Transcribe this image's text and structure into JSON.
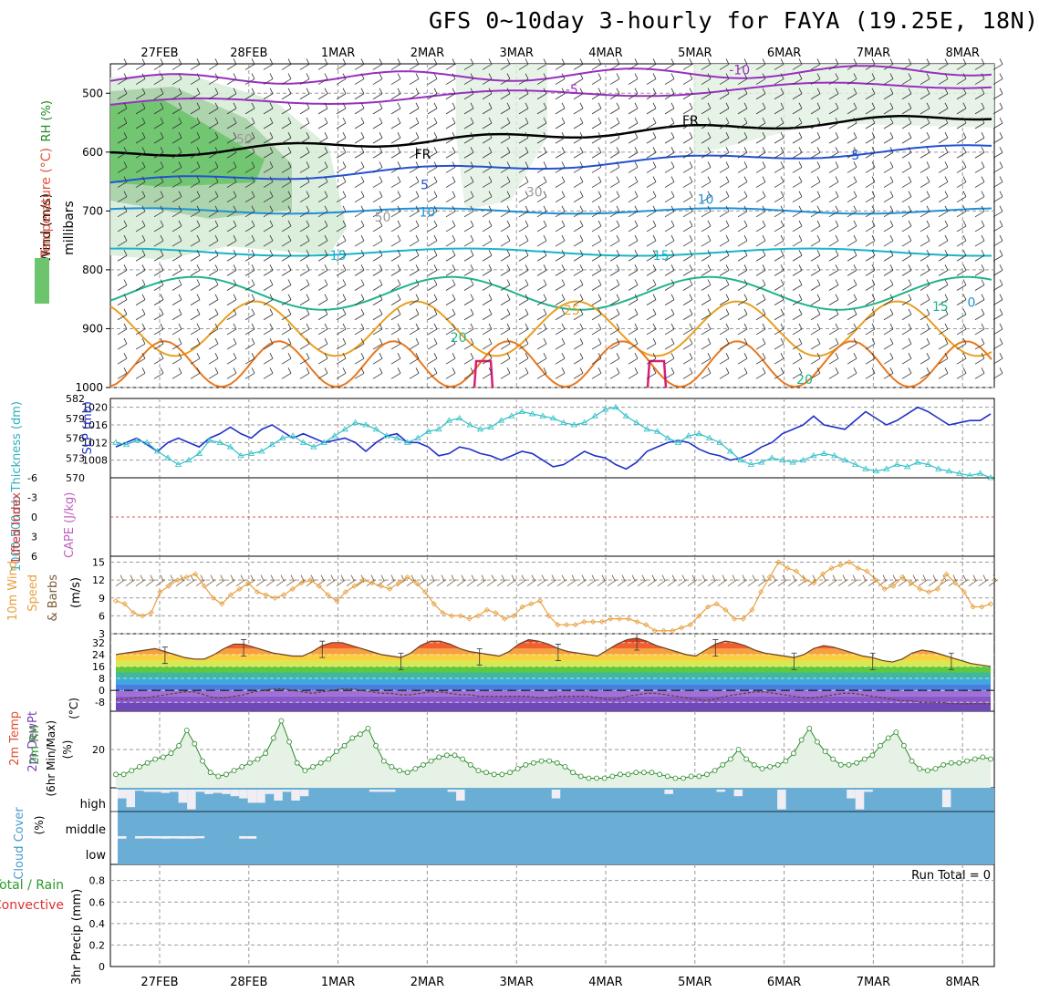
{
  "page": {
    "title": "GFS 0~10day 3-hourly for FAYA (19.25E, 18N)"
  },
  "colors": {
    "purple": "#9a2fc0",
    "black": "#000000",
    "blue": "#2351d6",
    "lightblue": "#1e90d8",
    "cyan": "#17b4c8",
    "teal": "#1eb48c",
    "orange": "#e8a020",
    "darkorange": "#e87820",
    "magenta": "#d81e78",
    "rhgreen": "#4cc84c",
    "slp": "#2030c8",
    "thick": "#30c0c8",
    "wind10m": "#e8a040",
    "rh2m": "#2a8a2a",
    "cloud": "#6aaed6",
    "grid": "#999999"
  },
  "chart_data": [
    {
      "panel": "upper-air",
      "type": "contour",
      "ylabel_parts": [
        "RH (%)",
        "Temperature (°C)",
        "Wind (m/s)"
      ],
      "ylabel2": "millibars",
      "yticks": [
        500,
        600,
        700,
        800,
        900,
        1000
      ],
      "ylim": [
        1000,
        450
      ],
      "xticks": [
        "27FEB",
        "28FEB",
        "1MAR",
        "2MAR",
        "3MAR",
        "4MAR",
        "5MAR",
        "6MAR",
        "7MAR",
        "8MAR"
      ],
      "contour_labels": [
        {
          "text": "-10",
          "day": 6.5,
          "p": 460,
          "color": "purple"
        },
        {
          "text": "-5",
          "day": 4.62,
          "p": 493,
          "color": "purple"
        },
        {
          "text": "FR",
          "day": 5.95,
          "p": 546,
          "color": "black"
        },
        {
          "text": "FR",
          "day": 2.95,
          "p": 603,
          "color": "black"
        },
        {
          "text": "5",
          "day": 7.8,
          "p": 605,
          "color": "blue"
        },
        {
          "text": "5",
          "day": 2.97,
          "p": 655,
          "color": "blue"
        },
        {
          "text": "10",
          "day": 6.12,
          "p": 680,
          "color": "lightblue"
        },
        {
          "text": "10",
          "day": 3.0,
          "p": 702,
          "color": "lightblue"
        },
        {
          "text": "15",
          "day": 2.0,
          "p": 775,
          "color": "cyan"
        },
        {
          "text": "15",
          "day": 5.62,
          "p": 775,
          "color": "cyan"
        },
        {
          "text": "15",
          "day": 8.75,
          "p": 862,
          "color": "teal"
        },
        {
          "text": "20",
          "day": 3.35,
          "p": 915,
          "color": "teal"
        },
        {
          "text": "25",
          "day": 4.62,
          "p": 868,
          "color": "orange"
        },
        {
          "text": "20",
          "day": 7.23,
          "p": 986,
          "color": "teal"
        },
        {
          "text": "0",
          "day": 9.1,
          "p": 855,
          "color": "lightblue"
        },
        {
          "text": "50",
          "day": 0.95,
          "p": 578,
          "color": "grid"
        },
        {
          "text": "50",
          "day": 2.5,
          "p": 710,
          "color": "grid"
        },
        {
          "text": "30",
          "day": 4.2,
          "p": 668,
          "color": "grid"
        }
      ]
    },
    {
      "panel": "thickness-slp",
      "type": "line",
      "ylabel_left": "1000-500mb Thickness (dm)",
      "ylabel_right": "SLP (mb)",
      "yticks_left": [
        570,
        573,
        576,
        579,
        582
      ],
      "yticks_right": [
        1008,
        1012,
        1016,
        1020
      ],
      "ylim_slp": [
        1004,
        1022
      ],
      "series": [
        {
          "name": "SLP (mb)",
          "color": "slp",
          "values": [
            1011,
            1012,
            1013,
            1011.5,
            1010,
            1012,
            1013,
            1012,
            1011,
            1013,
            1014,
            1015.5,
            1014,
            1013,
            1015,
            1016,
            1014.5,
            1013,
            1014,
            1013,
            1012,
            1012.5,
            1013,
            1012,
            1010,
            1012,
            1013.5,
            1014,
            1012,
            1012,
            1011,
            1009,
            1009.5,
            1011,
            1010.5,
            1009.5,
            1009,
            1008,
            1009,
            1010,
            1009.5,
            1008,
            1006.5,
            1007,
            1008.5,
            1010,
            1009,
            1008.5,
            1007,
            1006,
            1007.5,
            1010,
            1011,
            1012,
            1012.5,
            1012,
            1010.5,
            1009.5,
            1009,
            1008,
            1008.5,
            1009.5,
            1011,
            1012,
            1014,
            1015,
            1016,
            1018,
            1016,
            1015.5,
            1015,
            1017,
            1019,
            1017.5,
            1016,
            1017,
            1018.5,
            1020,
            1019,
            1017.5,
            1016,
            1016.5,
            1017,
            1017,
            1018.5
          ]
        },
        {
          "name": "1000-500mb Thickness (dm)",
          "color": "thick",
          "markers": "triangle",
          "values": [
            1012,
            1011.5,
            1012.5,
            1012,
            1010,
            1008.5,
            1007,
            1008,
            1009.5,
            1012.5,
            1012,
            1011,
            1009,
            1009.5,
            1010,
            1011.5,
            1013,
            1013.5,
            1012,
            1011,
            1012,
            1013.5,
            1015,
            1016.5,
            1016,
            1015,
            1013.5,
            1013,
            1012,
            1013,
            1014.5,
            1015,
            1017,
            1017.5,
            1016,
            1015,
            1015.5,
            1017,
            1018,
            1019,
            1018.5,
            1018,
            1017.5,
            1016.5,
            1016,
            1016.5,
            1018,
            1019.5,
            1020,
            1018,
            1016.5,
            1015,
            1014.5,
            1013,
            1012,
            1013.5,
            1014,
            1013,
            1012,
            1010,
            1008,
            1007,
            1007.5,
            1008.5,
            1008,
            1007.5,
            1008,
            1009,
            1009.5,
            1009,
            1008,
            1007,
            1006,
            1005.5,
            1006,
            1007,
            1006.5,
            1007.5,
            1007,
            1006,
            1005.5,
            1005,
            1004.5,
            1005,
            1004
          ]
        }
      ]
    },
    {
      "panel": "stability",
      "type": "line",
      "ylabel_left": "Lifted Index",
      "ylabel_right": "CAPE (J/kg)",
      "yticks": [
        -6,
        -3,
        0,
        3,
        6
      ],
      "ylim": [
        6,
        -6
      ],
      "reference_line": 0
    },
    {
      "panel": "wind-10m",
      "type": "line",
      "ylabel_parts": [
        "10m Wind",
        "Speed",
        "(m/s)",
        "& Barbs"
      ],
      "yticks": [
        3,
        6,
        9,
        12,
        15
      ],
      "ylim": [
        3,
        16
      ],
      "series": [
        {
          "name": "10m Wind Speed",
          "color": "wind10m",
          "markers": "diamond",
          "values": [
            8.5,
            8,
            6.5,
            6,
            6.5,
            10,
            11,
            12,
            12.5,
            13,
            11,
            9,
            8,
            9.5,
            10.5,
            11.5,
            10,
            9.5,
            9,
            9.5,
            10.5,
            11.5,
            12,
            11,
            9.5,
            8.5,
            10,
            11,
            12,
            11.5,
            11,
            10.5,
            11.5,
            12.5,
            11.5,
            10,
            8,
            6.5,
            6,
            6,
            5.5,
            6,
            7,
            6.5,
            5.5,
            6,
            7.5,
            8,
            8.5,
            6,
            4.5,
            4.5,
            4.5,
            5,
            5,
            5,
            5.5,
            5.5,
            5.5,
            5,
            4.5,
            3.5,
            3.5,
            3.5,
            4,
            4.5,
            6,
            7.5,
            8,
            7,
            5.5,
            5.5,
            7,
            10,
            12.5,
            15,
            14,
            13.5,
            12,
            11.5,
            13,
            14,
            14.5,
            15,
            14,
            13.5,
            12,
            10.5,
            11,
            12.5,
            11.5,
            10.5,
            10,
            10.5,
            13,
            11.5,
            10,
            7.5,
            7.5,
            8
          ]
        }
      ]
    },
    {
      "panel": "temp-dewpoint",
      "type": "area",
      "ylabel_parts": [
        "2m Temp",
        "2m DewPt",
        "(6hr Min/Max)",
        "(°C)"
      ],
      "yticks": [
        -8,
        0,
        8,
        16,
        24,
        32
      ],
      "ylim": [
        -14,
        38
      ],
      "series": [
        {
          "name": "2m Temp",
          "color": "#6a4020",
          "values": [
            24,
            25,
            26,
            27,
            28,
            26,
            24,
            22,
            21,
            21,
            24,
            28,
            31,
            31,
            29,
            27,
            25,
            24,
            23,
            23,
            26,
            30,
            32,
            32,
            30,
            28,
            26,
            24,
            23,
            22,
            25,
            30,
            33,
            33,
            31,
            28,
            26,
            25,
            24,
            23,
            26,
            31,
            34,
            33,
            31,
            28,
            26,
            25,
            24,
            23,
            27,
            31,
            34,
            35,
            33,
            30,
            28,
            26,
            24,
            23,
            27,
            31,
            33,
            32,
            30,
            27,
            25,
            24,
            23,
            22,
            24,
            28,
            30,
            29,
            27,
            25,
            23,
            22,
            20,
            19,
            21,
            25,
            27,
            26,
            24,
            22,
            20,
            18,
            17,
            16
          ]
        },
        {
          "name": "2m DewPt",
          "color": "#6a4020",
          "style": "dashed",
          "values": [
            -6,
            -6,
            -5,
            -5,
            -4,
            -3,
            -2,
            -1,
            -1,
            -3,
            -5,
            -5,
            -4,
            -3,
            -1,
            0,
            1,
            1,
            0,
            -1,
            -2,
            -1,
            0,
            1,
            1,
            0,
            -1,
            -2,
            -2,
            -3,
            -3,
            -2,
            -1,
            -1,
            -2,
            -3,
            -3,
            -4,
            -4,
            -4,
            -4,
            -4,
            -4,
            -5,
            -5,
            -4,
            -4,
            -4,
            -4,
            -5,
            -6,
            -6,
            -4,
            -3,
            -2,
            -2,
            -3,
            -4,
            -5,
            -6,
            -7,
            -6,
            -4,
            -3,
            -2,
            -1,
            -1,
            -2,
            -3,
            -4,
            -5,
            -5,
            -4,
            -3,
            -2,
            -2,
            -3,
            -4,
            -5,
            -6,
            -7,
            -7,
            -8,
            -8,
            -8,
            -9,
            -9,
            -9,
            -9,
            -9
          ]
        }
      ]
    },
    {
      "panel": "rh-2m",
      "type": "area",
      "ylabel": "2m RH",
      "yunit": "(%)",
      "yticks": [
        20
      ],
      "ylim": [
        0,
        40
      ],
      "series": [
        {
          "name": "2m RH",
          "color": "rh2m",
          "markers": "circle",
          "values": [
            7,
            7,
            9,
            11,
            13,
            15,
            16,
            18,
            22,
            30,
            23,
            14,
            8,
            6,
            7,
            9,
            11,
            13,
            15,
            18,
            26,
            35,
            24,
            13,
            9,
            11,
            13,
            15,
            19,
            22,
            26,
            28,
            31,
            22,
            14,
            11,
            9,
            8,
            10,
            12,
            14,
            16,
            17,
            17,
            15,
            12,
            9,
            8,
            7,
            7,
            8,
            10,
            12,
            13,
            14,
            14,
            13,
            11,
            8,
            6,
            5,
            5,
            5,
            6,
            7,
            7,
            8,
            8,
            8,
            7,
            6,
            5,
            5,
            6,
            6,
            7,
            9,
            12,
            15,
            20,
            15,
            12,
            10,
            11,
            12,
            14,
            18,
            25,
            31,
            24,
            19,
            15,
            12,
            12,
            13,
            15,
            17,
            22,
            26,
            29,
            22,
            14,
            10,
            9,
            10,
            12,
            13,
            13,
            14,
            15,
            16,
            15
          ]
        }
      ]
    },
    {
      "panel": "cloud-cover",
      "type": "bar",
      "ylabel": "Cloud Cover",
      "yunit": "(%)",
      "categories": [
        "low",
        "middle",
        "high"
      ],
      "high_gap_fraction": [
        0.4,
        0.8,
        0.05,
        0.1,
        0.1,
        0.15,
        0.1,
        0.6,
        0.9,
        0.1,
        0.2,
        0.15,
        0.2,
        0.3,
        0.4,
        0.6,
        0.6,
        0.2,
        0.5,
        0.1,
        0.5,
        0.3,
        0,
        0,
        0,
        0,
        0,
        0,
        0,
        0.1,
        0.1,
        0.1,
        0,
        0,
        0,
        0,
        0,
        0,
        0.1,
        0.5,
        0,
        0,
        0,
        0,
        0,
        0,
        0,
        0,
        0,
        0,
        0.4,
        0,
        0,
        0,
        0,
        0,
        0,
        0,
        0,
        0,
        0,
        0,
        0,
        0.2,
        0,
        0,
        0,
        0,
        0,
        0.1,
        0,
        0.3,
        0,
        0,
        0,
        0,
        0.9,
        0,
        0,
        0,
        0,
        0,
        0,
        0,
        0.4,
        0.9,
        0.1,
        0,
        0,
        0,
        0,
        0,
        0,
        0,
        0,
        0.8,
        0,
        0,
        0,
        0,
        0
      ],
      "middle_gap_fraction": [
        0.2,
        0,
        0.15,
        0.1,
        0.15,
        0.2,
        0.15,
        0.2,
        0.2,
        0.1,
        0,
        0,
        0,
        0,
        0.2,
        0.2,
        0,
        0,
        0,
        0,
        0,
        0,
        0,
        0,
        0,
        0,
        0,
        0,
        0,
        0,
        0,
        0,
        0,
        0,
        0,
        0,
        0,
        0,
        0,
        0,
        0,
        0,
        0,
        0,
        0,
        0,
        0,
        0,
        0,
        0,
        0,
        0,
        0,
        0,
        0,
        0,
        0,
        0,
        0,
        0,
        0,
        0,
        0,
        0,
        0,
        0,
        0,
        0,
        0,
        0,
        0,
        0,
        0,
        0,
        0,
        0,
        0,
        0,
        0,
        0,
        0,
        0,
        0,
        0,
        0,
        0,
        0,
        0,
        0,
        0
      ]
    },
    {
      "panel": "precip",
      "type": "bar",
      "ylabel": "3hr Precip (mm)",
      "legend_left": [
        "Total / Rain",
        "Convective"
      ],
      "yticks": [
        0,
        0.2,
        0.4,
        0.6,
        0.8
      ],
      "ylim": [
        0,
        0.95
      ],
      "run_total": "Run Total = 0",
      "values": []
    }
  ]
}
